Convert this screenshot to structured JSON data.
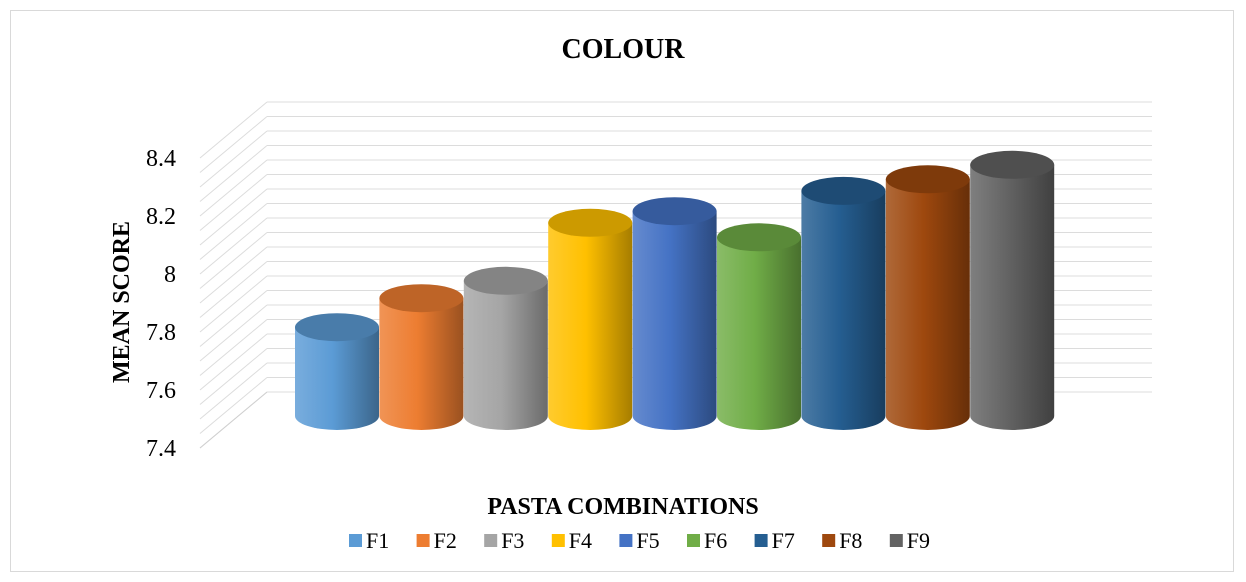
{
  "chart_data": {
    "type": "bar",
    "title": "COLOUR",
    "xlabel": "PASTA COMBINATIONS",
    "ylabel": "MEAN SCORE",
    "categories": [
      "F1",
      "F2",
      "F3",
      "F4",
      "F5",
      "F6",
      "F7",
      "F8",
      "F9"
    ],
    "values": [
      7.72,
      7.82,
      7.88,
      8.08,
      8.12,
      8.03,
      8.19,
      8.23,
      8.28
    ],
    "ylim": [
      7.4,
      8.4
    ],
    "yticks": [
      "8.4",
      "8.2",
      "8",
      "7.8",
      "7.6",
      "7.4"
    ],
    "grid": true,
    "bar_shape": "cylinder",
    "legend_position": "bottom",
    "colors": [
      "#5B9BD5",
      "#ED7D31",
      "#A5A5A5",
      "#FFC000",
      "#4472C4",
      "#70AD47",
      "#255E91",
      "#9E480E",
      "#636363"
    ]
  }
}
